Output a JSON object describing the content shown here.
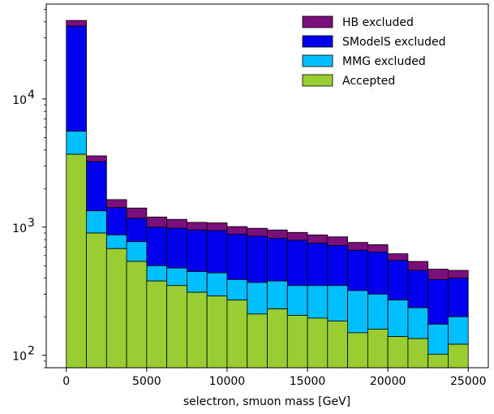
{
  "chart_data": {
    "type": "area",
    "subtype": "stacked-step-histogram",
    "title": "",
    "xlabel": "selectron, smuon mass [GeV]",
    "ylabel": "",
    "xlim": [
      -1250,
      26250
    ],
    "ylim": [
      80,
      55000
    ],
    "yscale": "log",
    "x_ticks": [
      0,
      5000,
      10000,
      15000,
      20000,
      25000
    ],
    "x_tick_labels": [
      "0",
      "5000",
      "10000",
      "15000",
      "20000",
      "25000"
    ],
    "y_ticks": [
      100,
      1000,
      10000
    ],
    "y_tick_labels": [
      "10",
      "10",
      "10"
    ],
    "y_tick_exponents": [
      "2",
      "3",
      "4"
    ],
    "legend_position": "top-right",
    "bin_edges": [
      0,
      1250,
      2500,
      3750,
      5000,
      6250,
      7500,
      8750,
      10000,
      11250,
      12500,
      13750,
      15000,
      16250,
      17500,
      18750,
      20000,
      21250,
      22500,
      23750,
      25000
    ],
    "series": [
      {
        "name": "Accepted",
        "color": "#9acd32",
        "cumulative_top": [
          3700,
          900,
          680,
          540,
          380,
          350,
          310,
          290,
          270,
          210,
          230,
          205,
          195,
          185,
          150,
          160,
          140,
          135,
          102,
          122
        ]
      },
      {
        "name": "MMG excluded",
        "color": "#00bfff",
        "cumulative_top": [
          5600,
          1340,
          870,
          770,
          500,
          480,
          450,
          440,
          390,
          370,
          380,
          350,
          350,
          350,
          320,
          300,
          270,
          235,
          175,
          200
        ]
      },
      {
        "name": "SModelS excluded",
        "color": "#0000ee",
        "cumulative_top": [
          37000,
          3250,
          1420,
          1170,
          1000,
          980,
          950,
          940,
          880,
          850,
          820,
          790,
          750,
          720,
          660,
          640,
          550,
          460,
          390,
          400
        ]
      },
      {
        "name": "HB excluded",
        "color": "#7b0f7b",
        "cumulative_top": [
          41000,
          3600,
          1640,
          1410,
          1200,
          1150,
          1090,
          1080,
          1010,
          980,
          950,
          910,
          870,
          840,
          760,
          730,
          620,
          540,
          470,
          460
        ]
      }
    ]
  }
}
